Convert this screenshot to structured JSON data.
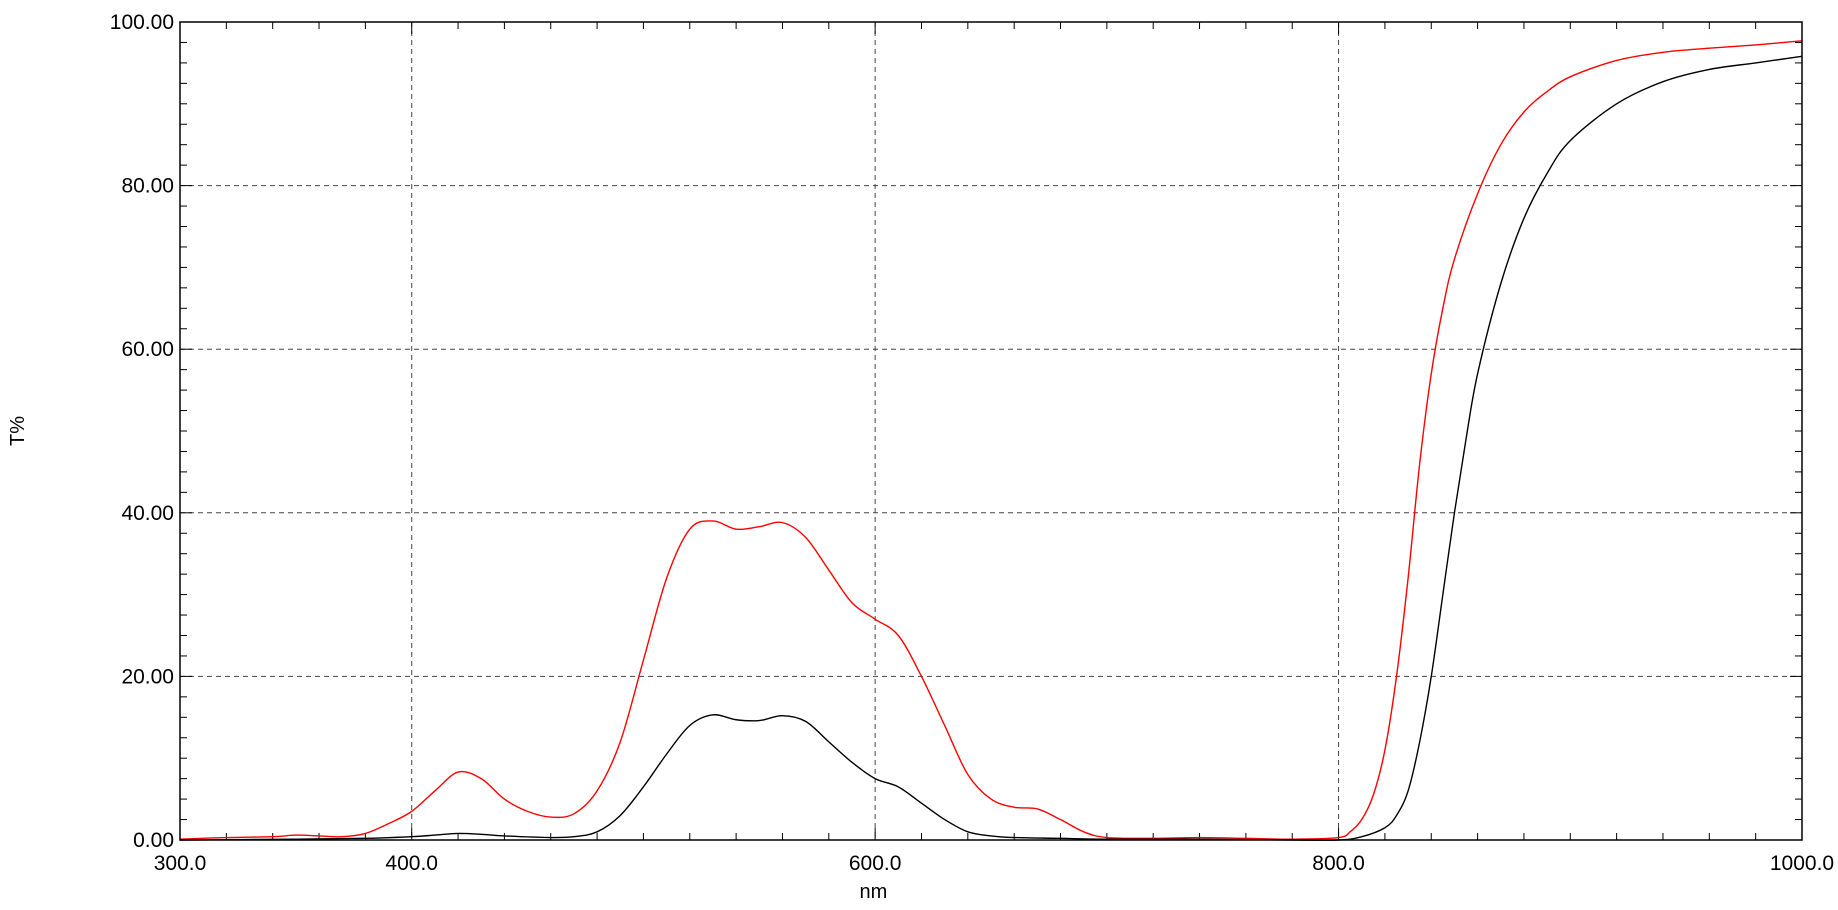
{
  "chart_data": {
    "type": "line",
    "title": "",
    "xlabel": "nm",
    "ylabel": "T%",
    "xlim": [
      300,
      1000
    ],
    "ylim": [
      0,
      100
    ],
    "x_ticks": [
      300,
      400,
      600,
      800,
      1000
    ],
    "x_tick_labels": [
      "300.0",
      "400.0",
      "600.0",
      "800.0",
      "1000.0"
    ],
    "y_ticks": [
      0,
      20,
      40,
      60,
      80,
      100
    ],
    "y_tick_labels": [
      "0.00",
      "20.00",
      "40.00",
      "60.00",
      "80.00",
      "100.00"
    ],
    "grid": true,
    "grid_style": "dashed",
    "legend": "none",
    "series": [
      {
        "color": "#ff0000",
        "points": [
          [
            300,
            0.1
          ],
          [
            320,
            0.3
          ],
          [
            340,
            0.4
          ],
          [
            350,
            0.6
          ],
          [
            360,
            0.5
          ],
          [
            370,
            0.4
          ],
          [
            380,
            0.8
          ],
          [
            390,
            2.0
          ],
          [
            400,
            3.5
          ],
          [
            410,
            6.0
          ],
          [
            420,
            8.3
          ],
          [
            430,
            7.5
          ],
          [
            440,
            5.0
          ],
          [
            450,
            3.5
          ],
          [
            460,
            2.8
          ],
          [
            470,
            3.2
          ],
          [
            480,
            6.0
          ],
          [
            490,
            12.0
          ],
          [
            500,
            22.0
          ],
          [
            510,
            32.0
          ],
          [
            520,
            38.0
          ],
          [
            530,
            39.0
          ],
          [
            540,
            38.0
          ],
          [
            550,
            38.3
          ],
          [
            560,
            38.8
          ],
          [
            570,
            37.0
          ],
          [
            580,
            33.0
          ],
          [
            590,
            29.0
          ],
          [
            600,
            27.0
          ],
          [
            610,
            25.0
          ],
          [
            620,
            20.0
          ],
          [
            630,
            14.0
          ],
          [
            640,
            8.0
          ],
          [
            650,
            5.0
          ],
          [
            660,
            4.0
          ],
          [
            670,
            3.8
          ],
          [
            680,
            2.5
          ],
          [
            690,
            1.0
          ],
          [
            700,
            0.3
          ],
          [
            720,
            0.2
          ],
          [
            740,
            0.3
          ],
          [
            760,
            0.2
          ],
          [
            780,
            0.1
          ],
          [
            800,
            0.3
          ],
          [
            805,
            1.0
          ],
          [
            810,
            2.5
          ],
          [
            815,
            5.5
          ],
          [
            820,
            11.0
          ],
          [
            825,
            20.0
          ],
          [
            830,
            32.0
          ],
          [
            835,
            46.0
          ],
          [
            840,
            57.0
          ],
          [
            845,
            65.0
          ],
          [
            850,
            71.0
          ],
          [
            860,
            79.0
          ],
          [
            870,
            85.0
          ],
          [
            880,
            89.0
          ],
          [
            890,
            91.5
          ],
          [
            900,
            93.3
          ],
          [
            920,
            95.3
          ],
          [
            940,
            96.3
          ],
          [
            960,
            96.8
          ],
          [
            980,
            97.2
          ],
          [
            1000,
            97.7
          ]
        ]
      },
      {
        "color": "#000000",
        "points": [
          [
            300,
            0.0
          ],
          [
            350,
            0.1
          ],
          [
            380,
            0.2
          ],
          [
            400,
            0.4
          ],
          [
            410,
            0.6
          ],
          [
            420,
            0.8
          ],
          [
            430,
            0.7
          ],
          [
            440,
            0.5
          ],
          [
            460,
            0.3
          ],
          [
            470,
            0.4
          ],
          [
            480,
            1.0
          ],
          [
            490,
            3.0
          ],
          [
            500,
            6.5
          ],
          [
            510,
            10.5
          ],
          [
            520,
            14.0
          ],
          [
            530,
            15.3
          ],
          [
            540,
            14.7
          ],
          [
            550,
            14.6
          ],
          [
            560,
            15.2
          ],
          [
            570,
            14.5
          ],
          [
            580,
            12.0
          ],
          [
            590,
            9.5
          ],
          [
            600,
            7.5
          ],
          [
            610,
            6.5
          ],
          [
            620,
            4.5
          ],
          [
            630,
            2.5
          ],
          [
            640,
            1.0
          ],
          [
            650,
            0.5
          ],
          [
            660,
            0.3
          ],
          [
            680,
            0.2
          ],
          [
            700,
            0.1
          ],
          [
            740,
            0.1
          ],
          [
            780,
            0.0
          ],
          [
            800,
            0.0
          ],
          [
            810,
            0.4
          ],
          [
            820,
            1.5
          ],
          [
            825,
            3.0
          ],
          [
            830,
            6.0
          ],
          [
            835,
            12.0
          ],
          [
            840,
            20.0
          ],
          [
            845,
            30.0
          ],
          [
            850,
            40.0
          ],
          [
            855,
            49.0
          ],
          [
            860,
            57.0
          ],
          [
            870,
            68.0
          ],
          [
            880,
            76.0
          ],
          [
            890,
            81.5
          ],
          [
            900,
            85.5
          ],
          [
            920,
            90.0
          ],
          [
            940,
            92.7
          ],
          [
            960,
            94.2
          ],
          [
            980,
            95.0
          ],
          [
            1000,
            95.8
          ]
        ]
      }
    ]
  }
}
